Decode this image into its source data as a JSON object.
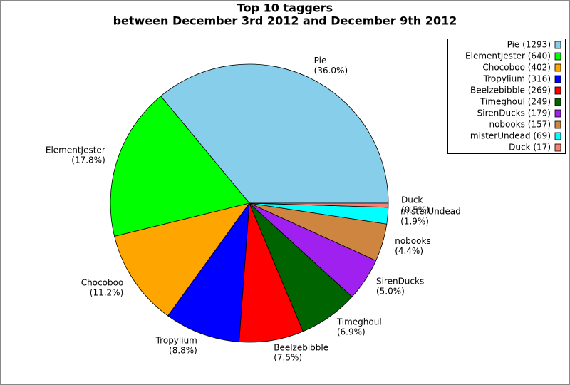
{
  "chart_data": {
    "type": "pie",
    "title": "Top 10 taggers",
    "subtitle": "between December 3rd 2012 and December 9th 2012",
    "categories": [
      "Pie",
      "ElementJester",
      "Chocoboo",
      "Tropylium",
      "Beelzebibble",
      "Timeghoul",
      "SirenDucks",
      "nobooks",
      "misterUndead",
      "Duck"
    ],
    "values": [
      1293,
      640,
      402,
      316,
      269,
      249,
      179,
      157,
      69,
      17
    ],
    "value_labels": [
      "(36.0%)",
      "(17.8%)",
      "(11.2%)",
      "(8.8%)",
      "(7.5%)",
      "(6.9%)",
      "(5.0%)",
      "(4.4%)",
      "(1.9%)",
      "(0.5%)"
    ],
    "legend_labels": [
      "Pie (1293)",
      "ElementJester (640)",
      "Chocoboo (402)",
      "Tropylium (316)",
      "Beelzebibble (269)",
      "Timeghoul (249)",
      "SirenDucks (179)",
      "nobooks (157)",
      "misterUndead (69)",
      "Duck (17)"
    ],
    "colors": [
      "#87ceeb",
      "#00ff00",
      "#ffa500",
      "#0000ff",
      "#ff0000",
      "#006400",
      "#a020f0",
      "#cd853f",
      "#00ffff",
      "#fa8072"
    ],
    "legend": "top-right"
  }
}
